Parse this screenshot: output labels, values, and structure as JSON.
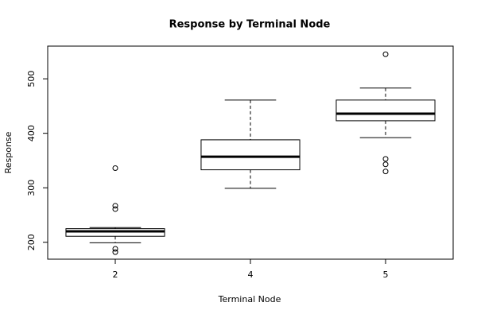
{
  "chart_data": {
    "type": "box",
    "title": "Response by Terminal Node",
    "xlabel": "Terminal Node",
    "ylabel": "Response",
    "categories": [
      "2",
      "4",
      "5"
    ],
    "boxes": [
      {
        "whislo": 199,
        "q1": 211,
        "median": 220,
        "q3": 225,
        "whishi": 227,
        "outliers": [
          336,
          267,
          261,
          188,
          182
        ]
      },
      {
        "whislo": 299,
        "q1": 333,
        "median": 357,
        "q3": 388,
        "whishi": 461,
        "outliers": []
      },
      {
        "whislo": 392,
        "q1": 423,
        "median": 436,
        "q3": 461,
        "whishi": 483,
        "outliers": [
          545,
          353,
          343,
          330
        ]
      }
    ],
    "color": "#000000",
    "ylim": [
      169,
      560
    ],
    "yticks": [
      200,
      300,
      400,
      500
    ]
  }
}
